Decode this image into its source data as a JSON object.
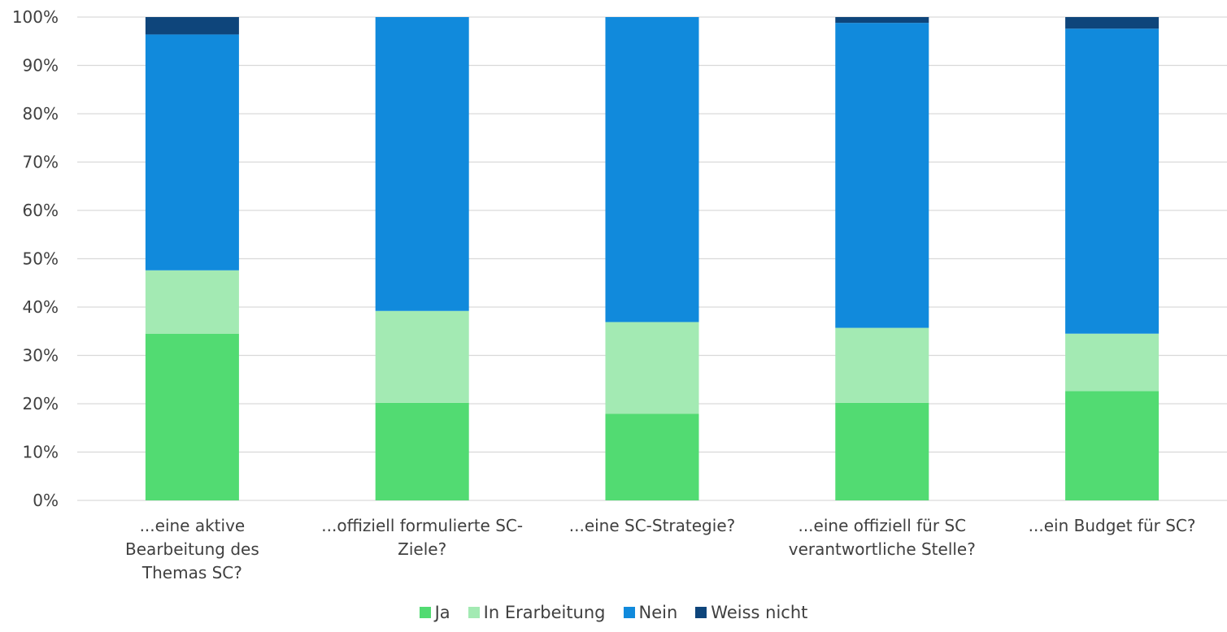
{
  "chart_data": {
    "type": "bar",
    "stacked": true,
    "percent": true,
    "title": "",
    "xlabel": "",
    "ylabel": "",
    "ylim": [
      0,
      100
    ],
    "yticks": [
      "0%",
      "10%",
      "20%",
      "30%",
      "40%",
      "50%",
      "60%",
      "70%",
      "80%",
      "90%",
      "100%"
    ],
    "grid": true,
    "legend_position": "bottom",
    "categories": [
      [
        "...eine aktive",
        "Bearbeitung des",
        "Themas SC?"
      ],
      [
        "...offiziell formulierte SC-",
        "Ziele?"
      ],
      [
        "...eine SC-Strategie?"
      ],
      [
        "...eine offiziell für SC",
        "verantwortliche Stelle?"
      ],
      [
        "...ein Budget für SC?"
      ]
    ],
    "series": [
      {
        "name": "Ja",
        "color": "#52DB72",
        "values": [
          34.5,
          20.2,
          17.9,
          20.2,
          22.6
        ]
      },
      {
        "name": "In Erarbeitung",
        "color": "#A3EAB3",
        "values": [
          13.1,
          19.0,
          19.0,
          15.5,
          11.9
        ]
      },
      {
        "name": "Nein",
        "color": "#118ADC",
        "values": [
          48.8,
          60.8,
          63.1,
          63.1,
          63.1
        ]
      },
      {
        "name": "Weiss nicht",
        "color": "#0E457B",
        "values": [
          3.6,
          0.0,
          0.0,
          1.2,
          2.4
        ]
      }
    ]
  }
}
